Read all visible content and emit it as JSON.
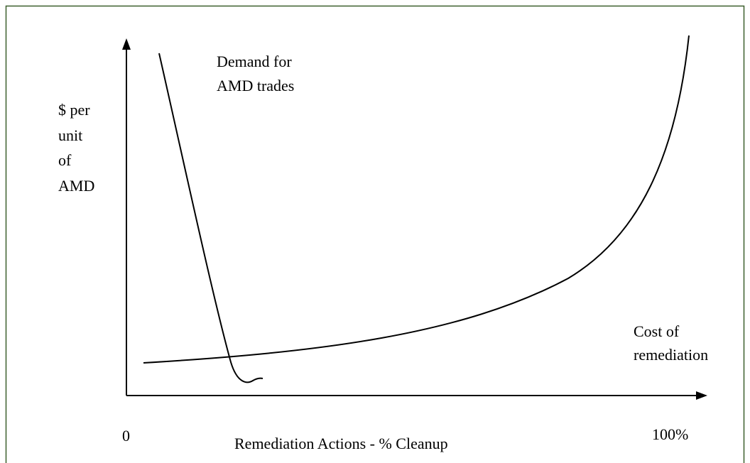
{
  "demand_label": [
    "Demand for",
    "AMD trades"
  ],
  "y_axis_label": [
    "$ per",
    "unit",
    "of",
    "AMD"
  ],
  "cost_label": [
    "Cost of",
    "remediation"
  ],
  "x_axis_start": "0",
  "x_axis_end": "100%",
  "x_axis_label": "Remediation Actions - % Cleanup"
}
